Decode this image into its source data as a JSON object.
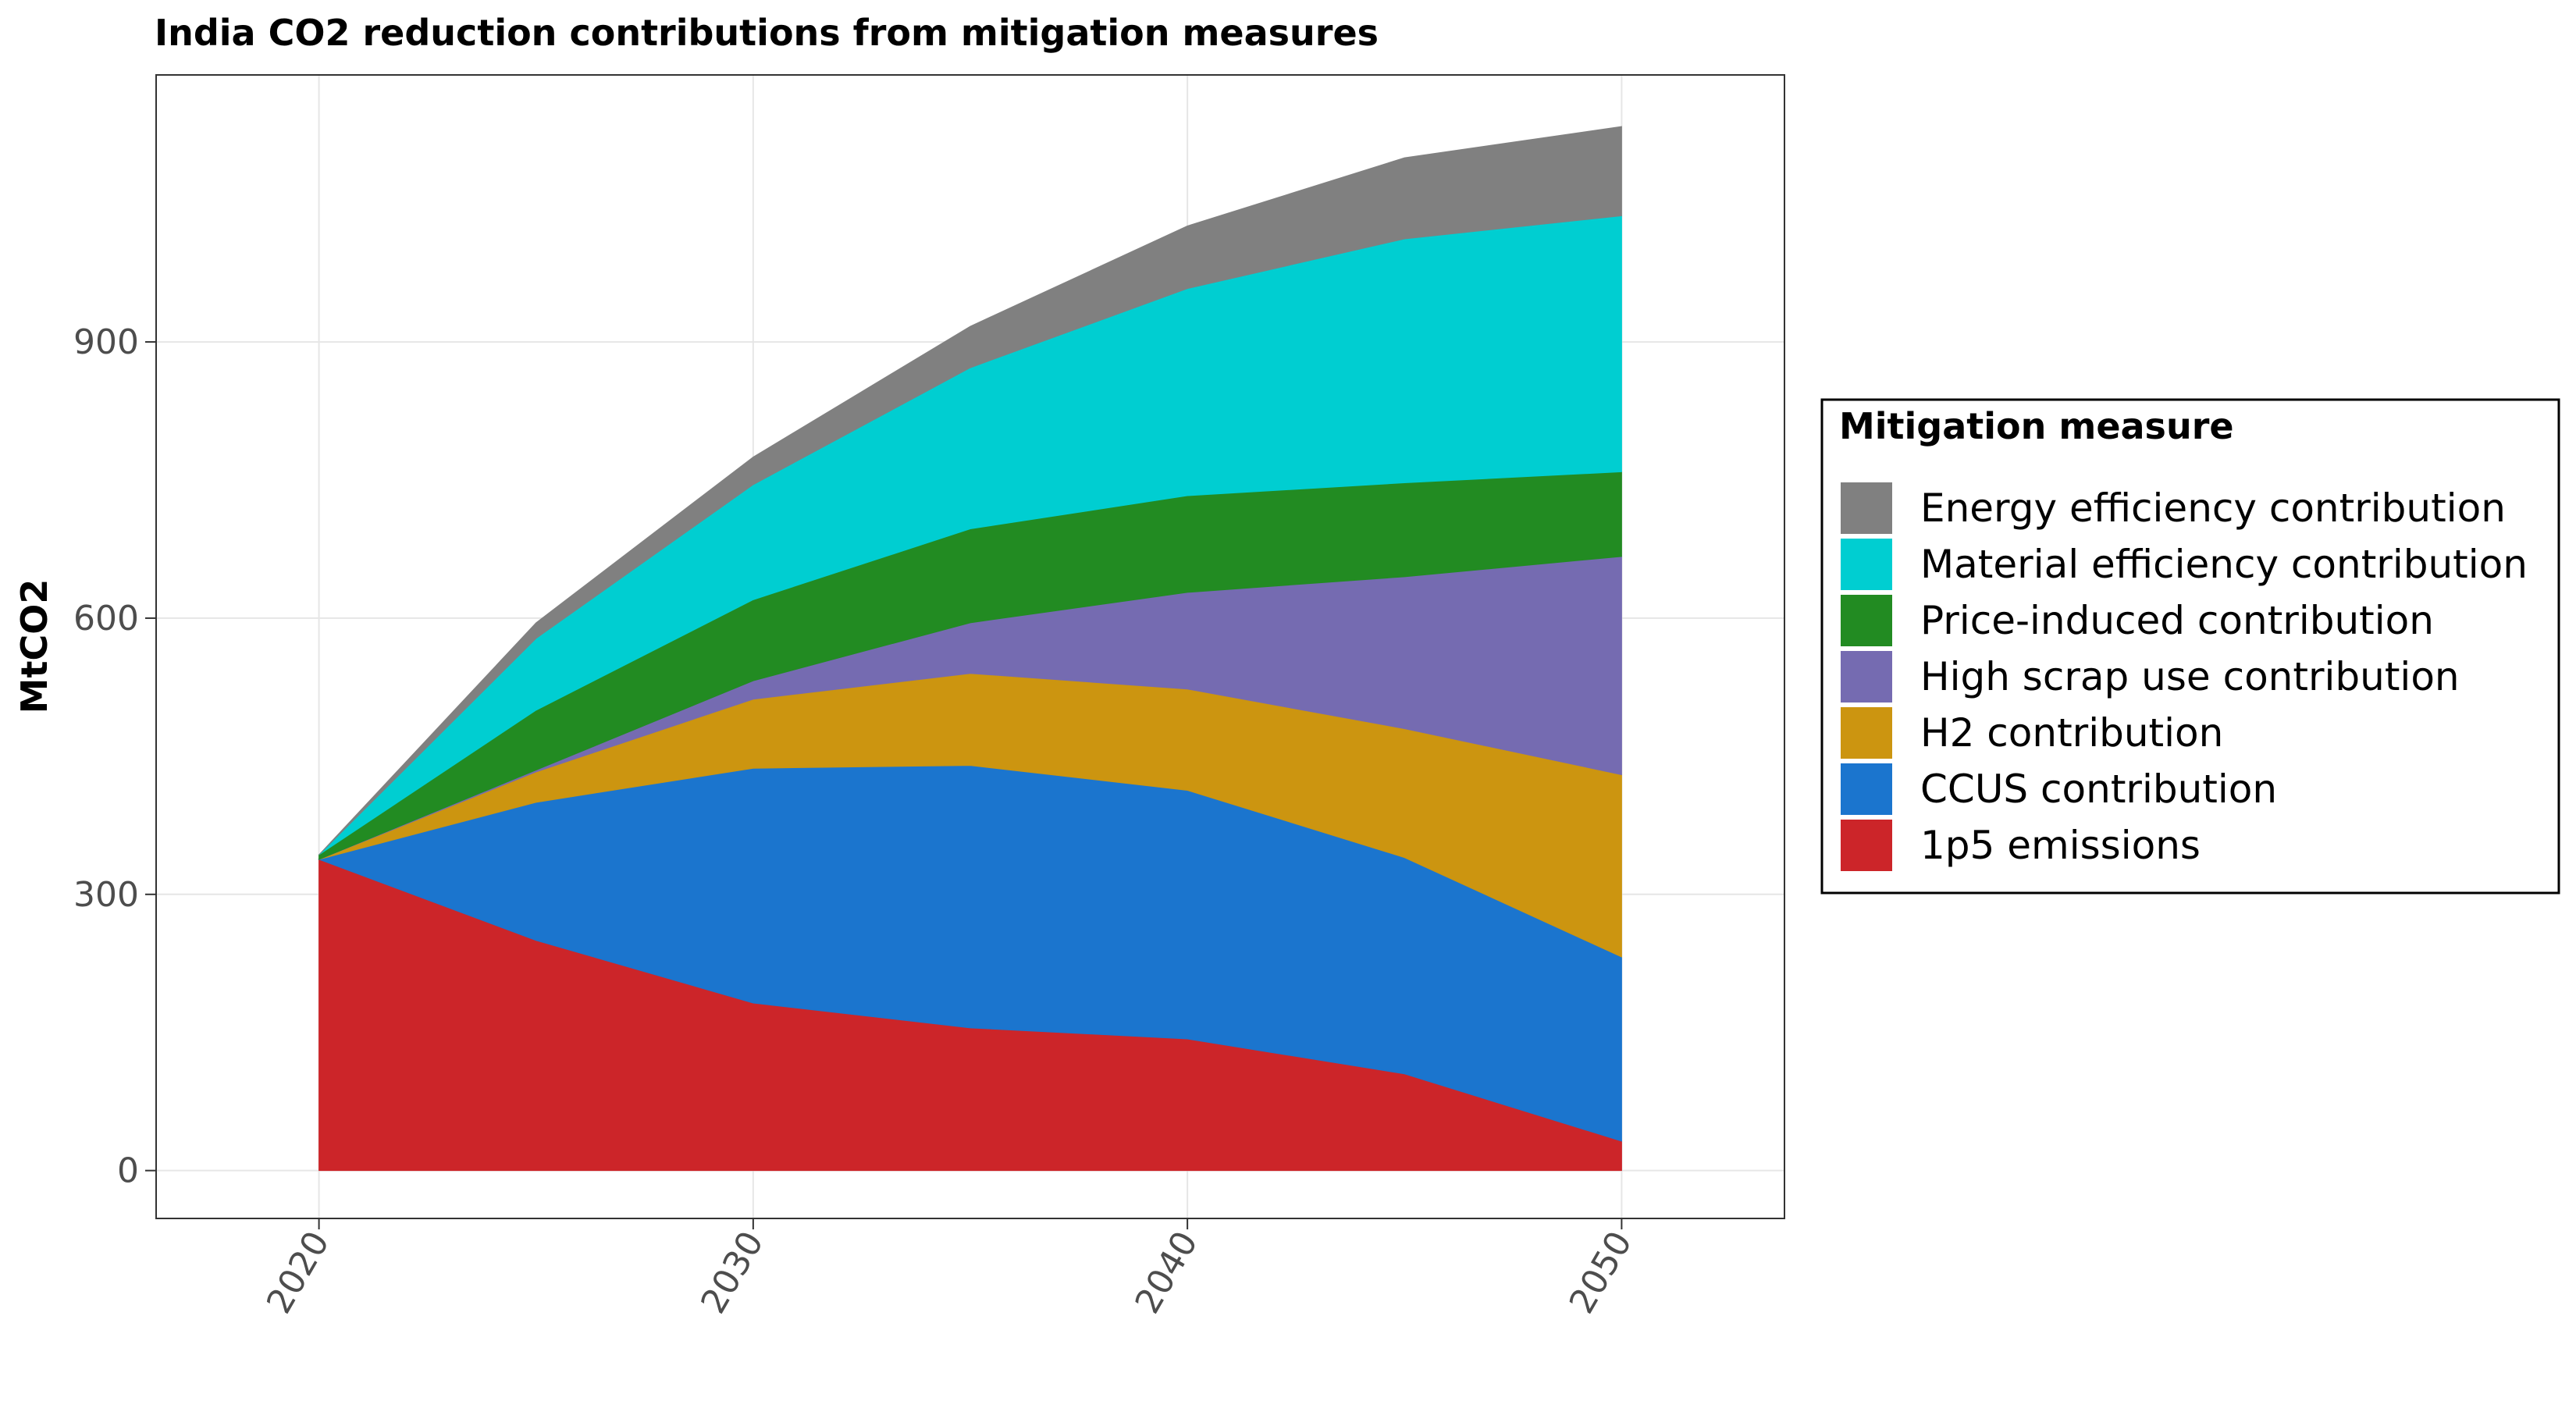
{
  "chart_data": {
    "type": "area",
    "stacked": true,
    "title": "India CO2 reduction contributions from mitigation measures",
    "xlabel": "",
    "ylabel": "MtCO2",
    "x": [
      2020,
      2025,
      2030,
      2035,
      2040,
      2045,
      2050
    ],
    "xticks": [
      "2020",
      "2030",
      "2040",
      "2050"
    ],
    "yticks": [
      "0",
      "300",
      "600",
      "900"
    ],
    "xlim": [
      2016.25,
      2053.75
    ],
    "ylim": [
      -52,
      1190
    ],
    "grid": true,
    "legend_title": "Mitigation measure",
    "legend_position": "right",
    "series": [
      {
        "name": "1p5 emissions",
        "color": "#CC2529",
        "values": [
          338,
          250,
          182,
          155,
          143,
          105,
          32
        ]
      },
      {
        "name": "CCUS contribution",
        "color": "#1B75CE",
        "values": [
          0,
          150,
          255,
          285,
          270,
          235,
          200
        ]
      },
      {
        "name": "H2 contribution",
        "color": "#CC9510",
        "values": [
          0,
          33,
          75,
          100,
          110,
          140,
          198
        ]
      },
      {
        "name": "High scrap use contribution",
        "color": "#756BB1",
        "values": [
          0,
          2,
          20,
          55,
          105,
          165,
          237
        ]
      },
      {
        "name": "Price-induced contribution",
        "color": "#228B22",
        "values": [
          5,
          65,
          88,
          102,
          105,
          102,
          92
        ]
      },
      {
        "name": "Material efficiency contribution",
        "color": "#00CED1",
        "values": [
          0,
          78,
          125,
          175,
          225,
          265,
          278
        ]
      },
      {
        "name": "Energy efficiency contribution",
        "color": "#808080",
        "values": [
          0,
          17,
          30,
          45,
          68,
          88,
          97
        ]
      }
    ]
  }
}
